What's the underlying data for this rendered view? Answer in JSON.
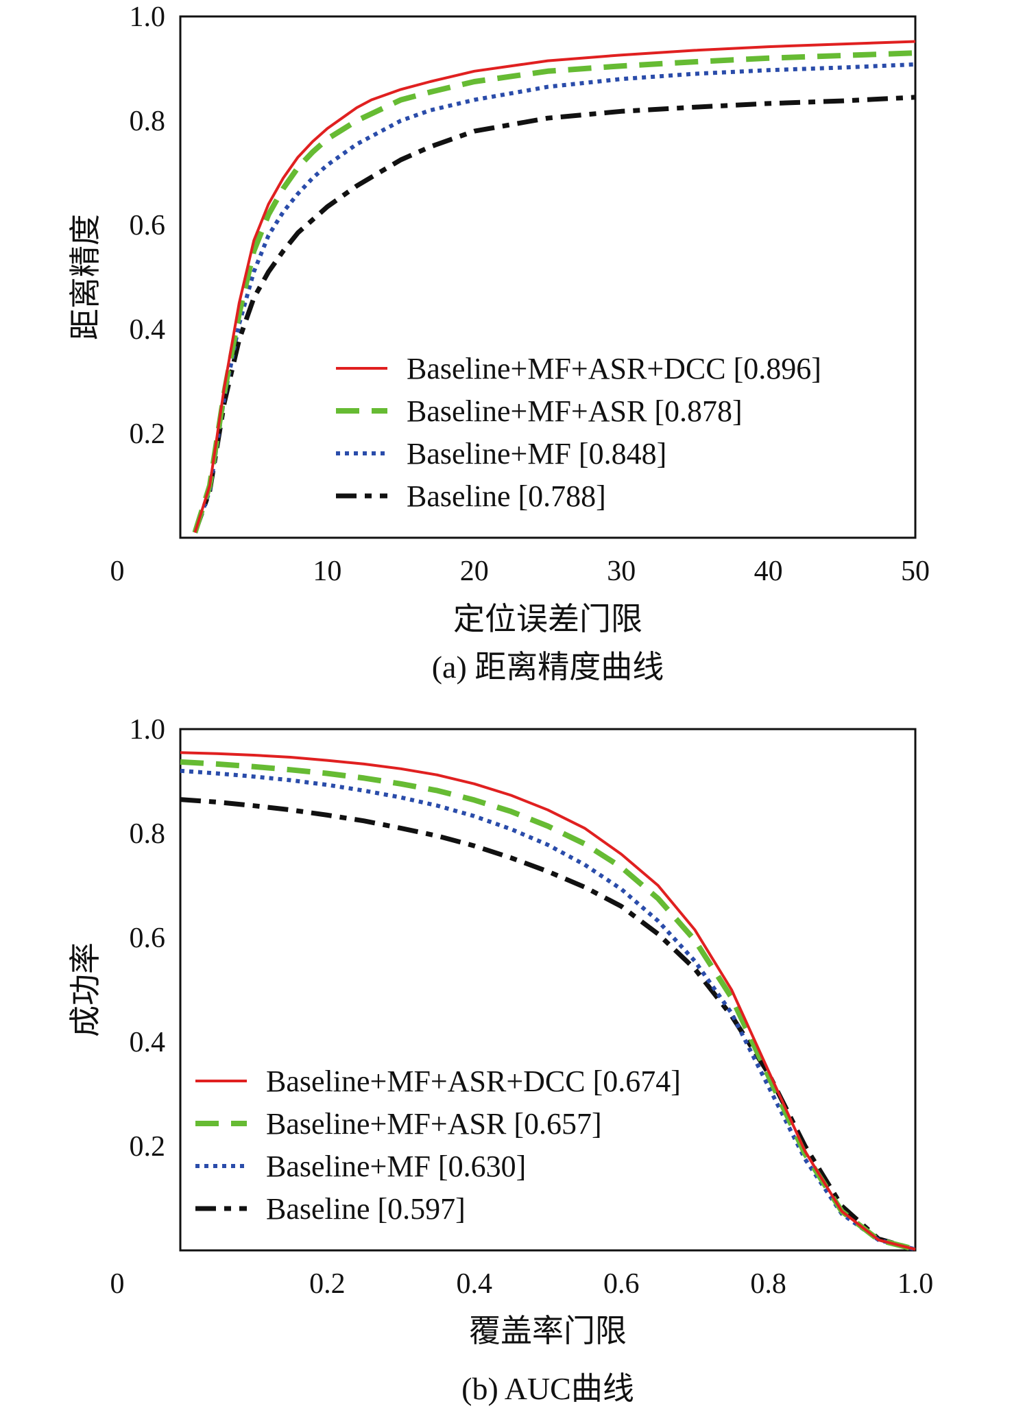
{
  "chart_data": [
    {
      "type": "line",
      "caption": "(a) 距离精度曲线",
      "xlabel": "定位误差门限",
      "ylabel": "距离精度",
      "xlim": [
        0,
        50
      ],
      "ylim": [
        0,
        1.0
      ],
      "xticks": [
        0,
        10,
        20,
        30,
        40,
        50
      ],
      "xtick_labels": [
        "0",
        "10",
        "20",
        "30",
        "40",
        "50"
      ],
      "yticks": [
        0.2,
        0.4,
        0.6,
        0.8,
        1.0
      ],
      "ytick_labels": [
        "0.2",
        "0.4",
        "0.6",
        "0.8",
        "1.0"
      ],
      "grid": false,
      "legend_position": "bottom-right",
      "series": [
        {
          "name": "Baseline+MF+ASR+DCC [0.896]",
          "color": "#e02020",
          "style": "solid",
          "x": [
            1,
            2,
            3,
            4,
            5,
            6,
            7,
            8,
            9,
            10,
            12,
            13,
            15,
            17,
            20,
            25,
            30,
            35,
            40,
            45,
            50
          ],
          "y": [
            0.01,
            0.1,
            0.29,
            0.45,
            0.57,
            0.64,
            0.69,
            0.73,
            0.76,
            0.785,
            0.825,
            0.84,
            0.86,
            0.875,
            0.895,
            0.915,
            0.926,
            0.935,
            0.942,
            0.947,
            0.952
          ]
        },
        {
          "name": "Baseline+MF+ASR [0.878]",
          "color": "#66bb33",
          "style": "dashed",
          "x": [
            1,
            2,
            3,
            4,
            5,
            6,
            7,
            8,
            9,
            10,
            12,
            15,
            17,
            20,
            25,
            30,
            35,
            40,
            45,
            50
          ],
          "y": [
            0.01,
            0.1,
            0.28,
            0.43,
            0.55,
            0.62,
            0.67,
            0.71,
            0.74,
            0.765,
            0.8,
            0.84,
            0.855,
            0.875,
            0.895,
            0.905,
            0.913,
            0.92,
            0.925,
            0.93
          ]
        },
        {
          "name": "Baseline+MF [0.848]",
          "color": "#2a4caa",
          "style": "dotted",
          "x": [
            1,
            2,
            3,
            4,
            5,
            6,
            7,
            8,
            9,
            10,
            12,
            15,
            17,
            20,
            25,
            30,
            35,
            40,
            45,
            50
          ],
          "y": [
            0.01,
            0.09,
            0.27,
            0.41,
            0.51,
            0.58,
            0.625,
            0.66,
            0.69,
            0.715,
            0.755,
            0.8,
            0.82,
            0.84,
            0.865,
            0.88,
            0.89,
            0.897,
            0.902,
            0.908
          ]
        },
        {
          "name": "Baseline [0.788]",
          "color": "#111111",
          "style": "dashdot",
          "x": [
            1,
            2,
            3,
            4,
            5,
            6,
            7,
            8,
            9,
            10,
            12,
            15,
            17,
            20,
            25,
            30,
            35,
            40,
            45,
            50
          ],
          "y": [
            0.01,
            0.09,
            0.26,
            0.38,
            0.46,
            0.51,
            0.55,
            0.585,
            0.61,
            0.635,
            0.675,
            0.725,
            0.75,
            0.78,
            0.805,
            0.818,
            0.826,
            0.833,
            0.838,
            0.845
          ]
        }
      ]
    },
    {
      "type": "line",
      "caption": "(b) AUC曲线",
      "xlabel": "覆盖率门限",
      "ylabel": "成功率",
      "xlim": [
        0,
        1.0
      ],
      "ylim": [
        0,
        1.0
      ],
      "xticks": [
        0,
        0.2,
        0.4,
        0.6,
        0.8,
        1.0
      ],
      "xtick_labels": [
        "0",
        "0.2",
        "0.4",
        "0.6",
        "0.8",
        "1.0"
      ],
      "yticks": [
        0.2,
        0.4,
        0.6,
        0.8,
        1.0
      ],
      "ytick_labels": [
        "0.2",
        "0.4",
        "0.6",
        "0.8",
        "1.0"
      ],
      "grid": false,
      "legend_position": "bottom-left",
      "series": [
        {
          "name": "Baseline+MF+ASR+DCC [0.674]",
          "color": "#e02020",
          "style": "solid",
          "x": [
            0,
            0.05,
            0.1,
            0.15,
            0.2,
            0.25,
            0.3,
            0.35,
            0.4,
            0.45,
            0.5,
            0.55,
            0.6,
            0.65,
            0.7,
            0.75,
            0.8,
            0.85,
            0.9,
            0.95,
            1.0
          ],
          "y": [
            0.955,
            0.953,
            0.95,
            0.946,
            0.94,
            0.933,
            0.924,
            0.912,
            0.895,
            0.873,
            0.845,
            0.81,
            0.76,
            0.7,
            0.615,
            0.5,
            0.345,
            0.19,
            0.075,
            0.02,
            0.002
          ]
        },
        {
          "name": "Baseline+MF+ASR [0.657]",
          "color": "#66bb33",
          "style": "dashed",
          "x": [
            0,
            0.05,
            0.1,
            0.15,
            0.2,
            0.25,
            0.3,
            0.35,
            0.4,
            0.45,
            0.5,
            0.55,
            0.6,
            0.65,
            0.7,
            0.75,
            0.8,
            0.85,
            0.9,
            0.95,
            1.0
          ],
          "y": [
            0.937,
            0.933,
            0.928,
            0.922,
            0.915,
            0.906,
            0.895,
            0.882,
            0.864,
            0.842,
            0.814,
            0.78,
            0.735,
            0.675,
            0.595,
            0.485,
            0.335,
            0.185,
            0.075,
            0.02,
            0.002
          ]
        },
        {
          "name": "Baseline+MF [0.630]",
          "color": "#2a4caa",
          "style": "dotted",
          "x": [
            0,
            0.05,
            0.1,
            0.15,
            0.2,
            0.25,
            0.3,
            0.35,
            0.4,
            0.45,
            0.5,
            0.55,
            0.6,
            0.65,
            0.7,
            0.75,
            0.8,
            0.85,
            0.9,
            0.95,
            1.0
          ],
          "y": [
            0.92,
            0.915,
            0.909,
            0.902,
            0.893,
            0.882,
            0.869,
            0.853,
            0.833,
            0.808,
            0.778,
            0.74,
            0.693,
            0.632,
            0.555,
            0.455,
            0.315,
            0.175,
            0.07,
            0.02,
            0.002
          ]
        },
        {
          "name": "Baseline [0.597]",
          "color": "#111111",
          "style": "dashdot",
          "x": [
            0,
            0.05,
            0.1,
            0.15,
            0.2,
            0.25,
            0.3,
            0.35,
            0.4,
            0.45,
            0.5,
            0.55,
            0.6,
            0.65,
            0.7,
            0.75,
            0.8,
            0.85,
            0.9,
            0.95,
            1.0
          ],
          "y": [
            0.865,
            0.86,
            0.853,
            0.845,
            0.835,
            0.824,
            0.81,
            0.795,
            0.776,
            0.753,
            0.727,
            0.697,
            0.66,
            0.607,
            0.54,
            0.45,
            0.34,
            0.2,
            0.085,
            0.022,
            0.002
          ]
        }
      ]
    }
  ]
}
